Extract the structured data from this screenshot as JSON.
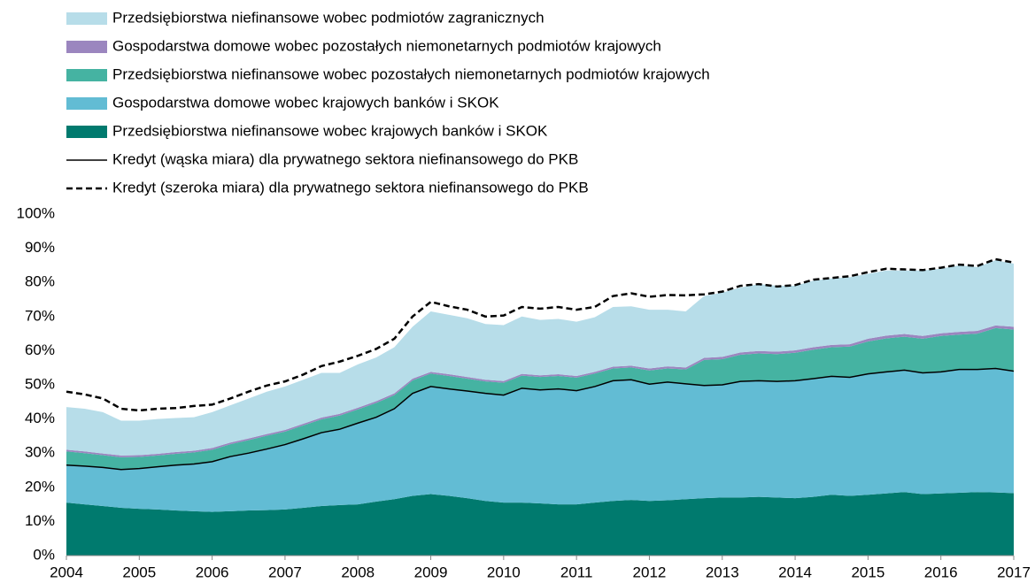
{
  "chart_data": {
    "type": "area",
    "x": [
      2004,
      2004.25,
      2004.5,
      2004.75,
      2005,
      2005.25,
      2005.5,
      2005.75,
      2006,
      2006.25,
      2006.5,
      2006.75,
      2007,
      2007.25,
      2007.5,
      2007.75,
      2008,
      2008.25,
      2008.5,
      2008.75,
      2009,
      2009.25,
      2009.5,
      2009.75,
      2010,
      2010.25,
      2010.5,
      2010.75,
      2011,
      2011.25,
      2011.5,
      2011.75,
      2012,
      2012.25,
      2012.5,
      2012.75,
      2013,
      2013.25,
      2013.5,
      2013.75,
      2014,
      2014.25,
      2014.5,
      2014.75,
      2015,
      2015.25,
      2015.5,
      2015.75,
      2016,
      2016.25,
      2016.5,
      2016.75,
      2017
    ],
    "series": [
      {
        "name": "Przedsiębiorstwa niefinansowe wobec krajowych banków i SKOK",
        "color": "#007a6e",
        "kind": "area",
        "values": [
          15.5,
          15.0,
          14.5,
          14.0,
          13.7,
          13.5,
          13.2,
          13.0,
          12.8,
          13.0,
          13.2,
          13.3,
          13.5,
          14.0,
          14.5,
          14.8,
          15.0,
          15.8,
          16.5,
          17.5,
          18.0,
          17.5,
          16.8,
          16.0,
          15.5,
          15.5,
          15.3,
          15.0,
          15.0,
          15.5,
          16.0,
          16.3,
          16.0,
          16.2,
          16.5,
          16.8,
          17.0,
          17.0,
          17.2,
          17.0,
          16.8,
          17.2,
          17.8,
          17.5,
          17.8,
          18.2,
          18.6,
          18.0,
          18.2,
          18.4,
          18.6,
          18.5,
          18.3
        ]
      },
      {
        "name": "Gospodarstwa domowe wobec krajowych banków i SKOK",
        "color": "#62bcd4",
        "kind": "area",
        "values": [
          11.0,
          11.2,
          11.3,
          11.2,
          11.8,
          12.5,
          13.3,
          13.8,
          14.7,
          16.0,
          16.8,
          17.9,
          19.0,
          20.2,
          21.5,
          22.2,
          23.8,
          24.7,
          26.5,
          30.0,
          31.5,
          31.3,
          31.4,
          31.5,
          31.5,
          33.5,
          33.2,
          33.8,
          33.3,
          34.0,
          35.2,
          35.2,
          34.2,
          34.6,
          33.8,
          33.0,
          33.0,
          34.0,
          34.0,
          34.0,
          34.4,
          34.6,
          34.7,
          34.7,
          35.4,
          35.6,
          35.7,
          35.5,
          35.6,
          36.1,
          35.9,
          36.3,
          35.7
        ]
      },
      {
        "name": "Przedsiębiorstwa niefinansowe wobec pozostałych niemonetarnych podmiotów krajowych",
        "color": "#45b3a2",
        "kind": "area",
        "values": [
          4.0,
          3.8,
          3.6,
          3.6,
          3.4,
          3.3,
          3.3,
          3.4,
          3.5,
          3.6,
          3.8,
          3.9,
          3.8,
          3.9,
          3.9,
          4.0,
          4.0,
          4.2,
          4.0,
          3.8,
          3.8,
          3.8,
          3.6,
          3.5,
          3.6,
          3.7,
          3.8,
          3.8,
          3.8,
          3.8,
          3.6,
          3.6,
          4.0,
          4.0,
          4.2,
          7.5,
          7.5,
          7.8,
          8.0,
          8.0,
          8.2,
          8.5,
          8.5,
          9.0,
          9.5,
          9.8,
          9.8,
          10.0,
          10.5,
          10.2,
          10.5,
          11.8,
          12.2
        ]
      },
      {
        "name": "Gospodarstwa domowe wobec pozostałych niemonetarnych podmiotów krajowych",
        "color": "#9b86bf",
        "kind": "area",
        "values": [
          0.5,
          0.5,
          0.5,
          0.5,
          0.5,
          0.5,
          0.5,
          0.5,
          0.5,
          0.5,
          0.5,
          0.5,
          0.5,
          0.5,
          0.5,
          0.5,
          0.5,
          0.5,
          0.5,
          0.5,
          0.5,
          0.5,
          0.5,
          0.5,
          0.5,
          0.5,
          0.5,
          0.5,
          0.5,
          0.5,
          0.5,
          0.5,
          0.6,
          0.6,
          0.6,
          0.6,
          0.7,
          0.7,
          0.7,
          0.7,
          0.7,
          0.7,
          0.7,
          0.7,
          0.8,
          0.8,
          0.8,
          0.8,
          0.8,
          0.8,
          0.8,
          0.8,
          0.8
        ]
      },
      {
        "name": "Przedsiębiorstwa niefinansowe wobec podmiotów zagranicznych",
        "color": "#b7dde9",
        "kind": "area",
        "values": [
          12.5,
          12.5,
          12.1,
          10.2,
          10.1,
          10.2,
          10.0,
          9.8,
          10.5,
          10.9,
          11.7,
          12.4,
          12.7,
          12.9,
          13.1,
          12.0,
          12.7,
          12.8,
          13.5,
          15.2,
          17.7,
          17.4,
          17.2,
          16.3,
          16.4,
          16.8,
          16.2,
          16.2,
          15.9,
          16.0,
          17.5,
          17.4,
          17.2,
          16.6,
          16.4,
          18.1,
          18.8,
          19.0,
          19.6,
          19.3,
          18.9,
          19.5,
          19.5,
          19.6,
          19.0,
          19.1,
          18.6,
          19.2,
          18.9,
          19.5,
          18.7,
          19.1,
          18.5
        ]
      },
      {
        "name": "Kredyt (wąska miara) dla prywatnego sektora niefinansowego do PKB",
        "color": "#000000",
        "kind": "line",
        "dash": false,
        "values": [
          26.5,
          26.2,
          25.8,
          25.2,
          25.5,
          26.0,
          26.5,
          26.8,
          27.5,
          29.0,
          30.0,
          31.2,
          32.5,
          34.2,
          36.0,
          37.0,
          38.8,
          40.5,
          43.0,
          47.5,
          49.5,
          48.8,
          48.2,
          47.5,
          47.0,
          49.0,
          48.5,
          48.8,
          48.3,
          49.5,
          51.2,
          51.5,
          50.2,
          50.8,
          50.3,
          49.8,
          50.0,
          51.0,
          51.2,
          51.0,
          51.2,
          51.8,
          52.5,
          52.2,
          53.2,
          53.8,
          54.3,
          53.5,
          53.8,
          54.5,
          54.5,
          54.8,
          54.0
        ]
      },
      {
        "name": "Kredyt (szeroka miara) dla prywatnego sektora niefinansowego do PKB",
        "color": "#000000",
        "kind": "line",
        "dash": true,
        "values": [
          48.0,
          47.2,
          46.0,
          43.0,
          42.5,
          43.0,
          43.2,
          43.8,
          44.2,
          46.0,
          48.0,
          49.8,
          51.0,
          53.0,
          55.5,
          56.8,
          58.5,
          60.5,
          63.5,
          70.0,
          74.3,
          73.0,
          72.0,
          70.0,
          70.3,
          72.8,
          72.3,
          72.8,
          72.0,
          72.8,
          76.0,
          76.8,
          75.8,
          76.3,
          76.2,
          76.5,
          77.3,
          79.0,
          79.5,
          78.8,
          79.2,
          80.8,
          81.3,
          81.8,
          83.0,
          84.0,
          83.8,
          83.6,
          84.3,
          85.2,
          84.8,
          86.8,
          85.8
        ]
      }
    ],
    "xlim": [
      2004,
      2017
    ],
    "xticks": [
      2004,
      2005,
      2006,
      2007,
      2008,
      2009,
      2010,
      2011,
      2012,
      2013,
      2014,
      2015,
      2016,
      2017
    ],
    "ylim": [
      0,
      100
    ],
    "yticks": [
      {
        "value": 0,
        "label": "0%"
      },
      {
        "value": 10,
        "label": "10%"
      },
      {
        "value": 20,
        "label": "20%"
      },
      {
        "value": 30,
        "label": "30%"
      },
      {
        "value": 40,
        "label": "40%"
      },
      {
        "value": 50,
        "label": "50%"
      },
      {
        "value": 60,
        "label": "60%"
      },
      {
        "value": 70,
        "label": "70%"
      },
      {
        "value": 80,
        "label": "80%"
      },
      {
        "value": 90,
        "label": "90%"
      },
      {
        "value": 100,
        "label": "100%"
      }
    ],
    "grid": false
  }
}
